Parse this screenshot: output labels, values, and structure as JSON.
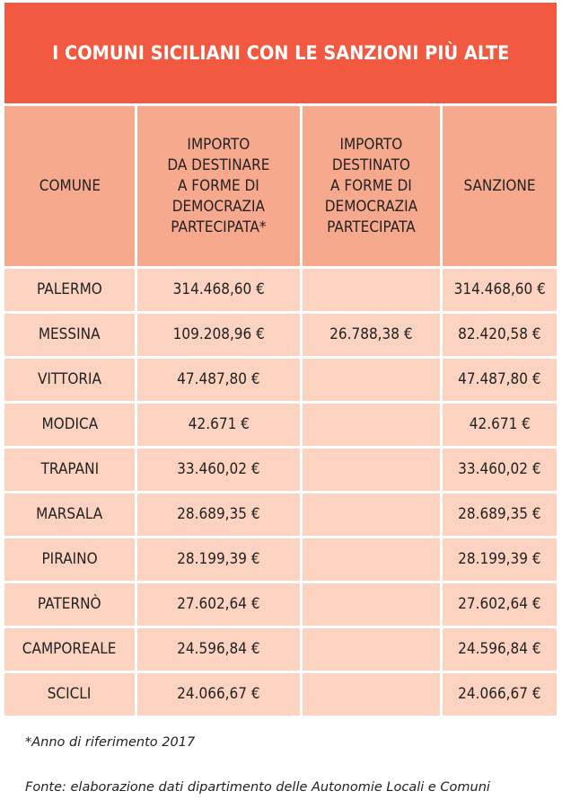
{
  "title": "I COMUNI SICILIANI CON LE SANZIONI PIÙ ALTE",
  "colors": {
    "title_bg": "#f15a40",
    "header_bg": "#f7a98e",
    "row_bg": "#fcd3c1",
    "title_text": "#ffffff"
  },
  "table": {
    "headers": [
      "COMUNE",
      "IMPORTO\nDA DESTINARE\nA FORME DI\nDEMOCRAZIA\nPARTECIPATA*",
      "IMPORTO\nDESTINATO\nA FORME DI\nDEMOCRAZIA\nPARTECIPATA",
      "SANZIONE"
    ],
    "rows": [
      {
        "comune": "PALERMO",
        "da_destinare": "314.468,60 €",
        "destinato": "",
        "sanzione": "314.468,60 €"
      },
      {
        "comune": "MESSINA",
        "da_destinare": "109.208,96 €",
        "destinato": "26.788,38 €",
        "sanzione": "82.420,58 €"
      },
      {
        "comune": "VITTORIA",
        "da_destinare": "47.487,80 €",
        "destinato": "",
        "sanzione": "47.487,80 €"
      },
      {
        "comune": "MODICA",
        "da_destinare": "42.671 €",
        "destinato": "",
        "sanzione": "42.671 €"
      },
      {
        "comune": "TRAPANI",
        "da_destinare": "33.460,02 €",
        "destinato": "",
        "sanzione": "33.460,02 €"
      },
      {
        "comune": "MARSALA",
        "da_destinare": "28.689,35 €",
        "destinato": "",
        "sanzione": "28.689,35 €"
      },
      {
        "comune": "PIRAINO",
        "da_destinare": "28.199,39 €",
        "destinato": "",
        "sanzione": "28.199,39 €"
      },
      {
        "comune": "PATERNÒ",
        "da_destinare": "27.602,64 €",
        "destinato": "",
        "sanzione": "27.602,64 €"
      },
      {
        "comune": "CAMPOREALE",
        "da_destinare": "24.596,84 €",
        "destinato": "",
        "sanzione": "24.596,84 €"
      },
      {
        "comune": "SCICLI",
        "da_destinare": "24.066,67 €",
        "destinato": "",
        "sanzione": "24.066,67 €"
      }
    ]
  },
  "footnote": "*Anno di riferimento 2017",
  "source": "Fonte: elaborazione dati dipartimento delle Autonomie Locali e Comuni",
  "chart_data": {
    "type": "table",
    "title": "I COMUNI SICILIANI CON LE SANZIONI PIÙ ALTE",
    "columns": [
      "COMUNE",
      "IMPORTO DA DESTINARE A FORME DI DEMOCRAZIA PARTECIPATA*",
      "IMPORTO DESTINATO A FORME DI DEMOCRAZIA PARTECIPATA",
      "SANZIONE"
    ],
    "categories": [
      "PALERMO",
      "MESSINA",
      "VITTORIA",
      "MODICA",
      "TRAPANI",
      "MARSALA",
      "PIRAINO",
      "PATERNÒ",
      "CAMPOREALE",
      "SCICLI"
    ],
    "series": [
      {
        "name": "IMPORTO DA DESTINARE A FORME DI DEMOCRAZIA PARTECIPATA*",
        "values": [
          314468.6,
          109208.96,
          47487.8,
          42671,
          33460.02,
          28689.35,
          28199.39,
          27602.64,
          24596.84,
          24066.67
        ]
      },
      {
        "name": "IMPORTO DESTINATO A FORME DI DEMOCRAZIA PARTECIPATA",
        "values": [
          null,
          26788.38,
          null,
          null,
          null,
          null,
          null,
          null,
          null,
          null
        ]
      },
      {
        "name": "SANZIONE",
        "values": [
          314468.6,
          82420.58,
          47487.8,
          42671,
          33460.02,
          28689.35,
          28199.39,
          27602.64,
          24596.84,
          24066.67
        ]
      }
    ],
    "unit": "€",
    "notes": [
      "*Anno di riferimento 2017",
      "Fonte: elaborazione dati dipartimento delle Autonomie Locali e Comuni"
    ]
  }
}
